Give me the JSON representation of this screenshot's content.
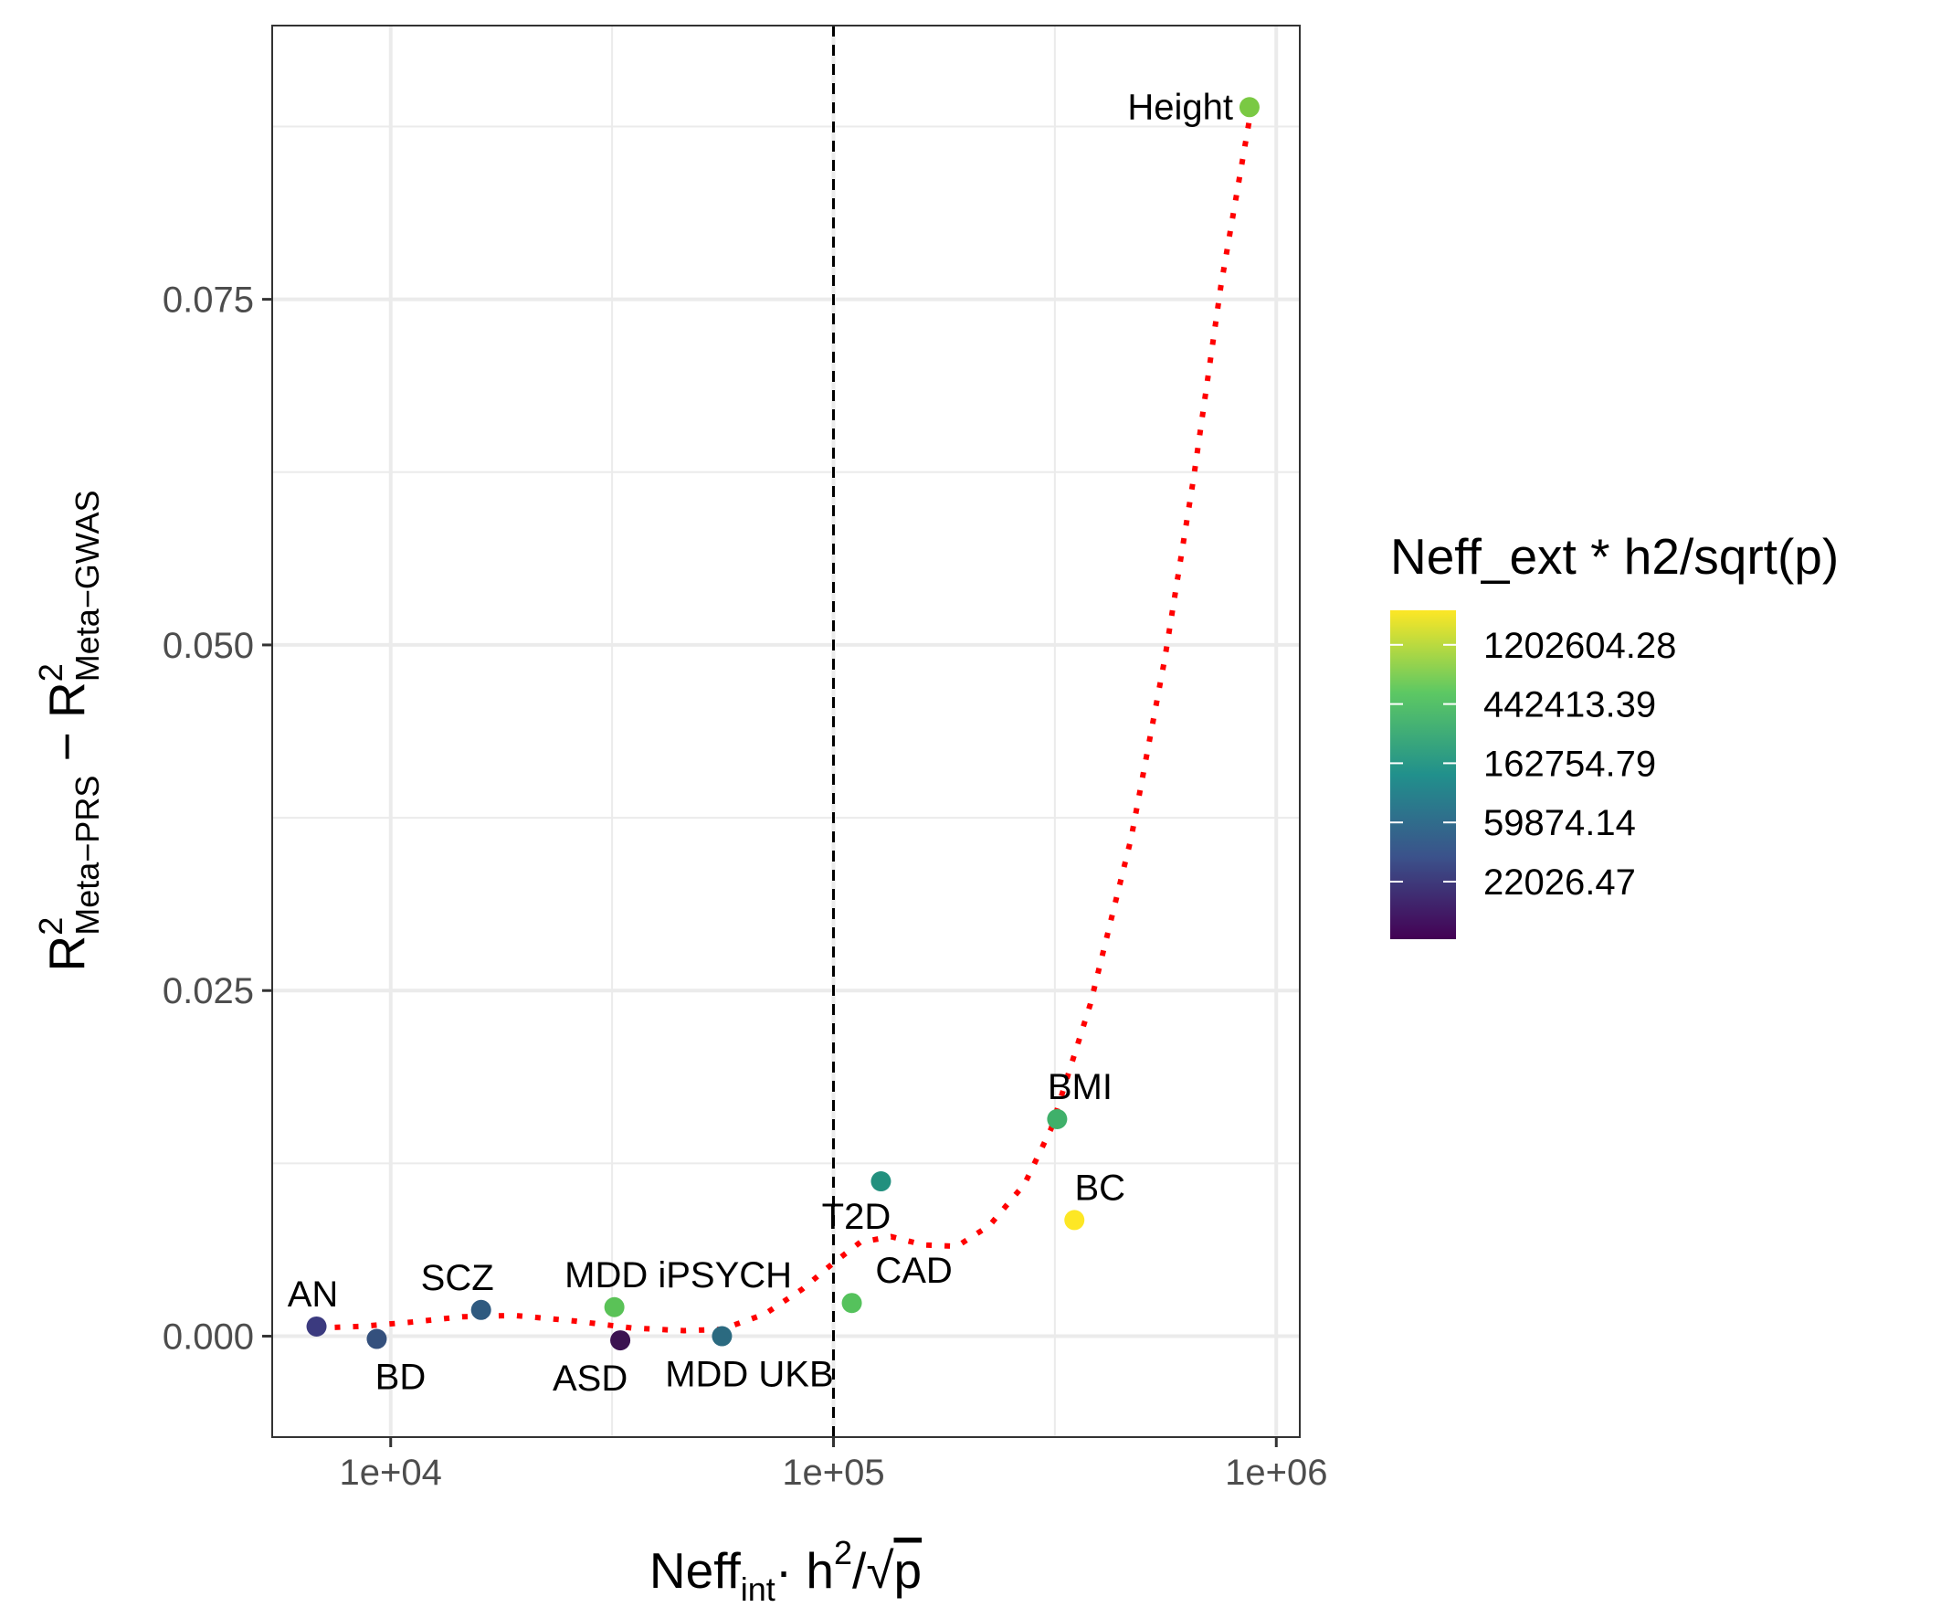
{
  "chart_data": {
    "type": "scatter",
    "x_scale": "log10",
    "xlim": [
      5400,
      1130000
    ],
    "ylim": [
      -0.0073,
      0.0948
    ],
    "x_ticks": [
      10000,
      100000,
      1000000
    ],
    "x_tick_labels": [
      "1e+04",
      "1e+05",
      "1e+06"
    ],
    "y_ticks": [
      0.0,
      0.025,
      0.05,
      0.075
    ],
    "y_tick_labels": [
      "0.000",
      "0.025",
      "0.050",
      "0.075"
    ],
    "xlabel": {
      "main": "Neff",
      "sub": "int",
      "tail": "· h",
      "sup": "2",
      "slash": "/",
      "sqrt": "√",
      "p": "p"
    },
    "ylabel": {
      "r1": "R",
      "sup1": "2",
      "sub1": "Meta−PRS",
      "minus": " − ",
      "r2": "R",
      "sup2": "2",
      "sub2": "Meta−GWAS"
    },
    "vline_x": 100000,
    "grid": true,
    "points": [
      {
        "label": "AN",
        "x": 6800,
        "y": 0.0007,
        "color": "#3b3a7f"
      },
      {
        "label": "BD",
        "x": 9300,
        "y": -0.0002,
        "color": "#34507d"
      },
      {
        "label": "SCZ",
        "x": 16000,
        "y": 0.0019,
        "color": "#2f5a80"
      },
      {
        "label": "MDD iPSYCH",
        "x": 32000,
        "y": 0.0021,
        "color": "#5ac257"
      },
      {
        "label": "ASD",
        "x": 33000,
        "y": -0.0003,
        "color": "#3b1250"
      },
      {
        "label": "MDD UKB",
        "x": 56000,
        "y": 0.0,
        "color": "#2b6a80"
      },
      {
        "label": "CAD",
        "x": 110000,
        "y": 0.0024,
        "color": "#55c25c"
      },
      {
        "label": "T2D",
        "x": 128000,
        "y": 0.0112,
        "color": "#22907e"
      },
      {
        "label": "BMI",
        "x": 320000,
        "y": 0.0157,
        "color": "#3fb06a"
      },
      {
        "label": "BC",
        "x": 350000,
        "y": 0.0084,
        "color": "#fde725"
      },
      {
        "label": "Height",
        "x": 870000,
        "y": 0.0889,
        "color": "#7ac943"
      }
    ],
    "smooth_line": {
      "color": "#ff0000",
      "style": "dotted",
      "x": [
        6800,
        8500,
        11000,
        14500,
        19000,
        26000,
        35000,
        46000,
        56000,
        70000,
        85000,
        100000,
        115000,
        135000,
        160000,
        190000,
        225000,
        270000,
        310000,
        380000,
        470000,
        560000,
        650000,
        750000,
        870000
      ],
      "y": [
        0.0006,
        0.0007,
        0.001,
        0.0014,
        0.0015,
        0.0011,
        0.0006,
        0.0004,
        0.0005,
        0.0016,
        0.0034,
        0.0053,
        0.0068,
        0.0072,
        0.0066,
        0.0065,
        0.008,
        0.011,
        0.015,
        0.024,
        0.036,
        0.049,
        0.062,
        0.076,
        0.088
      ]
    },
    "legend": {
      "title": "Neff_ext * h2/sqrt(p)",
      "placement": "right",
      "type": "colorbar",
      "scale": "log",
      "stops": [
        "#440154",
        "#3b528b",
        "#21908c",
        "#5dc863",
        "#fde725"
      ],
      "ticks": [
        "1202604.28",
        "442413.39",
        "162754.79",
        "59874.14",
        "22026.47"
      ],
      "tick_positions_fraction": [
        0.895,
        0.715,
        0.535,
        0.355,
        0.175
      ]
    }
  }
}
